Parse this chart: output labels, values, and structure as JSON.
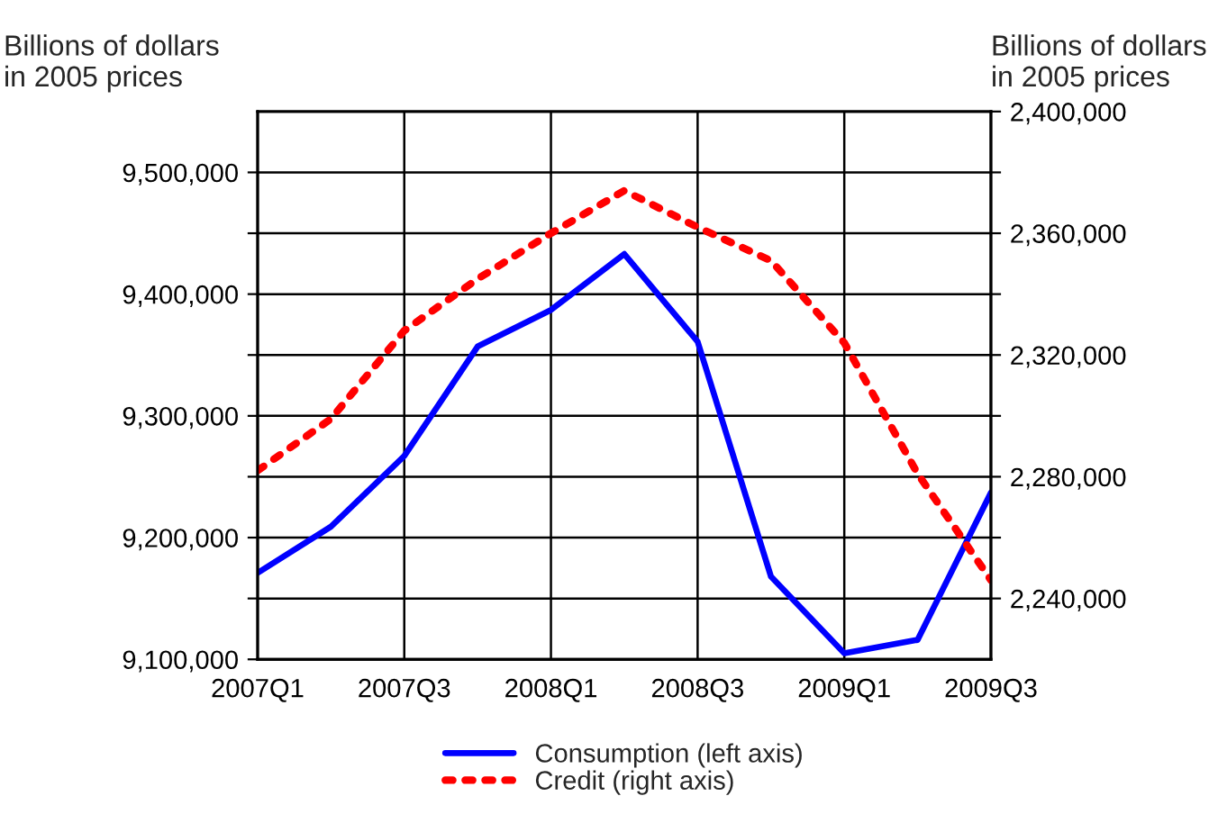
{
  "chart_data": {
    "type": "line",
    "ylabel": "Billions of dollars\nin 2005 prices",
    "y2label": "Billions of dollars\nin 2005 prices",
    "categories": [
      "2007Q1",
      null,
      "2007Q3",
      null,
      "2008Q1",
      null,
      "2008Q3",
      null,
      "2009Q1",
      null,
      "2009Q3"
    ],
    "series": [
      {
        "name": "Consumption (left axis)",
        "color": "#0000ff",
        "line_style": "solid",
        "values": [
          9171000,
          9209000,
          9267000,
          9357000,
          9387000,
          9433000,
          9361000,
          9168000,
          9105000,
          9116000,
          9237000
        ]
      },
      {
        "name": "Credit (right axis)",
        "color": "#ff0000",
        "line_style": "dotted",
        "axis": "y2",
        "values": [
          2282000,
          2299000,
          2328000,
          2345000,
          2360000,
          2374000,
          2362000,
          2351000,
          2324000,
          2281000,
          2246000
        ]
      }
    ],
    "ylim": [
      9100000,
      9550000
    ],
    "yticks": [
      {
        "value": 9100000,
        "label": "9,100,000"
      },
      {
        "value": 9150000,
        "label": null
      },
      {
        "value": 9200000,
        "label": "9,200,000"
      },
      {
        "value": 9250000,
        "label": null
      },
      {
        "value": 9300000,
        "label": "9,300,000"
      },
      {
        "value": 9350000,
        "label": null
      },
      {
        "value": 9400000,
        "label": "9,400,000"
      },
      {
        "value": 9450000,
        "label": null
      },
      {
        "value": 9500000,
        "label": "9,500,000"
      }
    ],
    "y2lim": [
      2220000,
      2400000
    ],
    "y2ticks": [
      {
        "value": 2240000,
        "label": "2,240,000"
      },
      {
        "value": 2260000,
        "label": null
      },
      {
        "value": 2280000,
        "label": "2,280,000"
      },
      {
        "value": 2300000,
        "label": null
      },
      {
        "value": 2320000,
        "label": "2,320,000"
      },
      {
        "value": 2340000,
        "label": null
      },
      {
        "value": 2360000,
        "label": "2,360,000"
      },
      {
        "value": 2380000,
        "label": null
      },
      {
        "value": 2400000,
        "label": "2,400,000"
      }
    ],
    "grid": true,
    "legend": "bottom",
    "marker": "none"
  }
}
